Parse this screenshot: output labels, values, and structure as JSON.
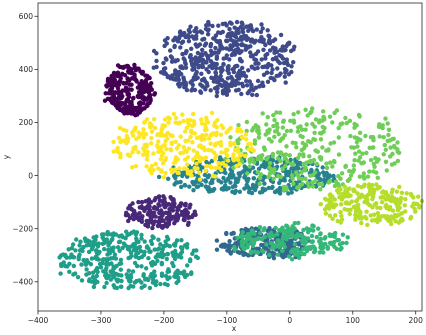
{
  "chart_data": {
    "type": "scatter",
    "title": "",
    "xlabel": "x",
    "ylabel": "y",
    "xlim": [
      -400,
      210
    ],
    "ylim": [
      -510,
      650
    ],
    "x_ticks": [
      -400,
      -300,
      -200,
      -100,
      0,
      100,
      200
    ],
    "y_ticks": [
      -400,
      -200,
      0,
      200,
      400,
      600
    ],
    "x_tick_labels": [
      "−400",
      "−300",
      "−200",
      "−100",
      "0",
      "100",
      "200"
    ],
    "y_tick_labels": [
      "−400",
      "−200",
      "0",
      "200",
      "400",
      "600"
    ],
    "grid": false,
    "legend": "none",
    "clusters": [
      {
        "color": "#440154",
        "center": [
          -255,
          320
        ],
        "spread": [
          38,
          95
        ],
        "count": 260
      },
      {
        "color": "#482878",
        "center": [
          -205,
          -140
        ],
        "spread": [
          55,
          60
        ],
        "count": 200
      },
      {
        "color": "#3e4a89",
        "center": [
          -100,
          440
        ],
        "spread": [
          110,
          140
        ],
        "count": 520
      },
      {
        "color": "#31688e",
        "center": [
          -40,
          -255
        ],
        "spread": [
          75,
          60
        ],
        "count": 220
      },
      {
        "color": "#26828e",
        "center": [
          -60,
          0
        ],
        "spread": [
          130,
          70
        ],
        "count": 360
      },
      {
        "color": "#1f9e89",
        "center": [
          -255,
          -320
        ],
        "spread": [
          110,
          110
        ],
        "count": 360
      },
      {
        "color": "#35b779",
        "center": [
          0,
          -245
        ],
        "spread": [
          90,
          60
        ],
        "count": 200
      },
      {
        "color": "#6ece58",
        "center": [
          40,
          100
        ],
        "spread": [
          140,
          150
        ],
        "count": 340
      },
      {
        "color": "#b5de2b",
        "center": [
          130,
          -110
        ],
        "spread": [
          80,
          80
        ],
        "count": 220
      },
      {
        "color": "#fde725",
        "center": [
          -170,
          115
        ],
        "spread": [
          110,
          120
        ],
        "count": 300
      }
    ]
  }
}
